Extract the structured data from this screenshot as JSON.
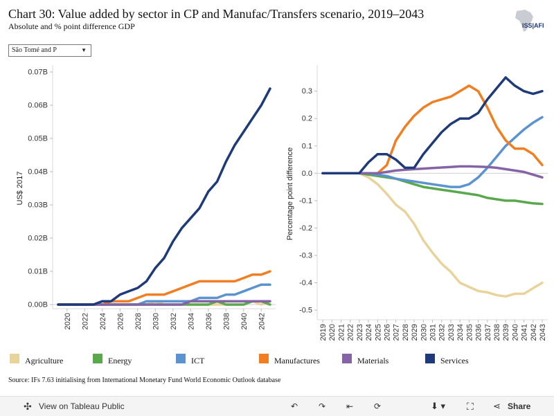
{
  "title": "Chart 30: Value added by sector in CP and Manufac/Transfers scenario, 2019–2043",
  "subtitle": "Absolute and % point difference GDP",
  "logo_text": "ISS|AFI",
  "dropdown": {
    "selected": "São Tomé and P"
  },
  "source": "Source: IFs 7.63 initialising from International Monetary Fund World Economic Outlook database",
  "footer": {
    "view_label": "View on Tableau Public",
    "share_label": "Share"
  },
  "colors": {
    "Agriculture": "#e8d49a",
    "Energy": "#59a84b",
    "ICT": "#5b93d0",
    "Manufactures": "#f27e22",
    "Materials": "#8463a7",
    "Services": "#1f3a7a"
  },
  "chart_data": [
    {
      "type": "line",
      "ylabel": "US$ 2017",
      "ylim": [
        0,
        0.07
      ],
      "yticks": [
        0,
        0.01,
        0.02,
        0.03,
        0.04,
        0.05,
        0.06,
        0.07
      ],
      "ytick_labels": [
        "0.00B",
        "0.01B",
        "0.02B",
        "0.03B",
        "0.04B",
        "0.05B",
        "0.06B",
        "0.07B"
      ],
      "x": [
        2019,
        2020,
        2021,
        2022,
        2023,
        2024,
        2025,
        2026,
        2027,
        2028,
        2029,
        2030,
        2031,
        2032,
        2033,
        2034,
        2035,
        2036,
        2037,
        2038,
        2039,
        2040,
        2041,
        2042,
        2043
      ],
      "xtick_labels": [
        "2020",
        "2022",
        "2024",
        "2026",
        "2028",
        "2030",
        "2032",
        "2034",
        "2036",
        "2038",
        "2040",
        "2042"
      ],
      "series": [
        {
          "name": "Agriculture",
          "values": [
            0,
            0,
            0,
            0,
            0,
            0,
            0,
            0,
            0,
            0,
            0,
            0.001,
            0,
            0,
            0,
            0,
            0,
            0,
            0,
            0,
            0,
            0,
            0.001,
            0,
            0.001
          ]
        },
        {
          "name": "Energy",
          "values": [
            0,
            0,
            0,
            0,
            0,
            0,
            0,
            0,
            0,
            0,
            0,
            0,
            0,
            0,
            0,
            0,
            0,
            0,
            0.001,
            0,
            0,
            0,
            0.001,
            0.001,
            0
          ]
        },
        {
          "name": "ICT",
          "values": [
            0,
            0,
            0,
            0,
            0,
            0,
            0,
            0,
            0,
            0,
            0.001,
            0.001,
            0.001,
            0.001,
            0.001,
            0.001,
            0.002,
            0.002,
            0.002,
            0.003,
            0.003,
            0.004,
            0.005,
            0.006,
            0.006
          ]
        },
        {
          "name": "Manufactures",
          "values": [
            0,
            0,
            0,
            0,
            0,
            0,
            0.001,
            0.001,
            0.001,
            0.002,
            0.003,
            0.003,
            0.003,
            0.004,
            0.005,
            0.006,
            0.007,
            0.007,
            0.007,
            0.007,
            0.007,
            0.008,
            0.009,
            0.009,
            0.01
          ]
        },
        {
          "name": "Materials",
          "values": [
            0,
            0,
            0,
            0,
            0,
            0,
            0,
            0,
            0,
            0,
            0,
            0,
            0,
            0,
            0,
            0.001,
            0.001,
            0.001,
            0.001,
            0.001,
            0.001,
            0.001,
            0.001,
            0.001,
            0.001
          ]
        },
        {
          "name": "Services",
          "values": [
            0,
            0,
            0,
            0,
            0,
            0.001,
            0.001,
            0.003,
            0.004,
            0.005,
            0.007,
            0.011,
            0.014,
            0.019,
            0.023,
            0.026,
            0.029,
            0.034,
            0.037,
            0.043,
            0.048,
            0.052,
            0.056,
            0.06,
            0.065
          ]
        }
      ]
    },
    {
      "type": "line",
      "ylabel": "Percentage point difference",
      "ylim": [
        -0.52,
        0.37
      ],
      "yticks": [
        -0.5,
        -0.4,
        -0.3,
        -0.2,
        -0.1,
        0,
        0.1,
        0.2,
        0.3
      ],
      "ytick_labels": [
        "-0.5",
        "-0.4",
        "-0.3",
        "-0.2",
        "-0.1",
        "0.0",
        "0.1",
        "0.2",
        "0.3"
      ],
      "x": [
        2019,
        2020,
        2021,
        2022,
        2023,
        2024,
        2025,
        2026,
        2027,
        2028,
        2029,
        2030,
        2031,
        2032,
        2033,
        2034,
        2035,
        2036,
        2037,
        2038,
        2039,
        2040,
        2041,
        2042,
        2043
      ],
      "xtick_labels": [
        "2019",
        "2020",
        "2021",
        "2022",
        "2023",
        "2024",
        "2025",
        "2026",
        "2027",
        "2028",
        "2029",
        "2030",
        "2031",
        "2032",
        "2033",
        "2034",
        "2035",
        "2036",
        "2037",
        "2038",
        "2039",
        "2040",
        "2041",
        "2042",
        "2043"
      ],
      "series": [
        {
          "name": "Agriculture",
          "values": [
            0,
            0,
            0,
            0,
            0,
            -0.015,
            -0.04,
            -0.075,
            -0.115,
            -0.14,
            -0.185,
            -0.245,
            -0.29,
            -0.33,
            -0.36,
            -0.4,
            -0.415,
            -0.43,
            -0.435,
            -0.445,
            -0.45,
            -0.44,
            -0.44,
            -0.42,
            -0.4
          ]
        },
        {
          "name": "Energy",
          "values": [
            0,
            0,
            0,
            0,
            0,
            -0.005,
            -0.01,
            -0.015,
            -0.02,
            -0.03,
            -0.04,
            -0.05,
            -0.055,
            -0.06,
            -0.065,
            -0.07,
            -0.075,
            -0.08,
            -0.09,
            -0.095,
            -0.1,
            -0.1,
            -0.105,
            -0.11,
            -0.112
          ]
        },
        {
          "name": "ICT",
          "values": [
            0,
            0,
            0,
            0,
            0,
            0,
            -0.005,
            -0.01,
            -0.02,
            -0.025,
            -0.03,
            -0.035,
            -0.04,
            -0.045,
            -0.05,
            -0.05,
            -0.04,
            -0.015,
            0.02,
            0.06,
            0.1,
            0.13,
            0.16,
            0.185,
            0.205
          ]
        },
        {
          "name": "Manufactures",
          "values": [
            0,
            0,
            0,
            0,
            0,
            0,
            0,
            0.03,
            0.12,
            0.17,
            0.21,
            0.24,
            0.26,
            0.27,
            0.28,
            0.3,
            0.32,
            0.3,
            0.24,
            0.17,
            0.12,
            0.09,
            0.09,
            0.07,
            0.03
          ]
        },
        {
          "name": "Materials",
          "values": [
            0,
            0,
            0,
            0,
            0,
            0,
            0,
            0.005,
            0.01,
            0.013,
            0.015,
            0.017,
            0.019,
            0.021,
            0.023,
            0.025,
            0.025,
            0.024,
            0.023,
            0.02,
            0.015,
            0.01,
            0.005,
            -0.005,
            -0.015
          ]
        },
        {
          "name": "Services",
          "values": [
            0,
            0,
            0,
            0,
            0,
            0.04,
            0.07,
            0.07,
            0.05,
            0.02,
            0.02,
            0.07,
            0.11,
            0.15,
            0.18,
            0.2,
            0.2,
            0.22,
            0.27,
            0.31,
            0.35,
            0.32,
            0.3,
            0.29,
            0.3
          ]
        }
      ]
    }
  ]
}
